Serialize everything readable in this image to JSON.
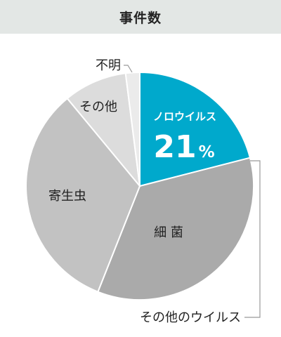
{
  "chart_data": {
    "type": "pie",
    "title": "事件数",
    "slices": [
      {
        "label": "ノロウイルス",
        "value": 21,
        "color": "#00a9cc",
        "value_label": "21",
        "unit": "%"
      },
      {
        "label": "細 菌",
        "value": 35,
        "color": "#aaaaaa"
      },
      {
        "label": "寄生虫",
        "value": 33,
        "color": "#c2c2c2"
      },
      {
        "label": "その他",
        "value": 9,
        "color": "#dcdcdc"
      },
      {
        "label": "不明",
        "value": 2,
        "color": "#ebebeb"
      }
    ],
    "callouts": [
      {
        "label": "その他のウイルス"
      }
    ],
    "start": "12 o'clock",
    "direction": "clockwise"
  }
}
